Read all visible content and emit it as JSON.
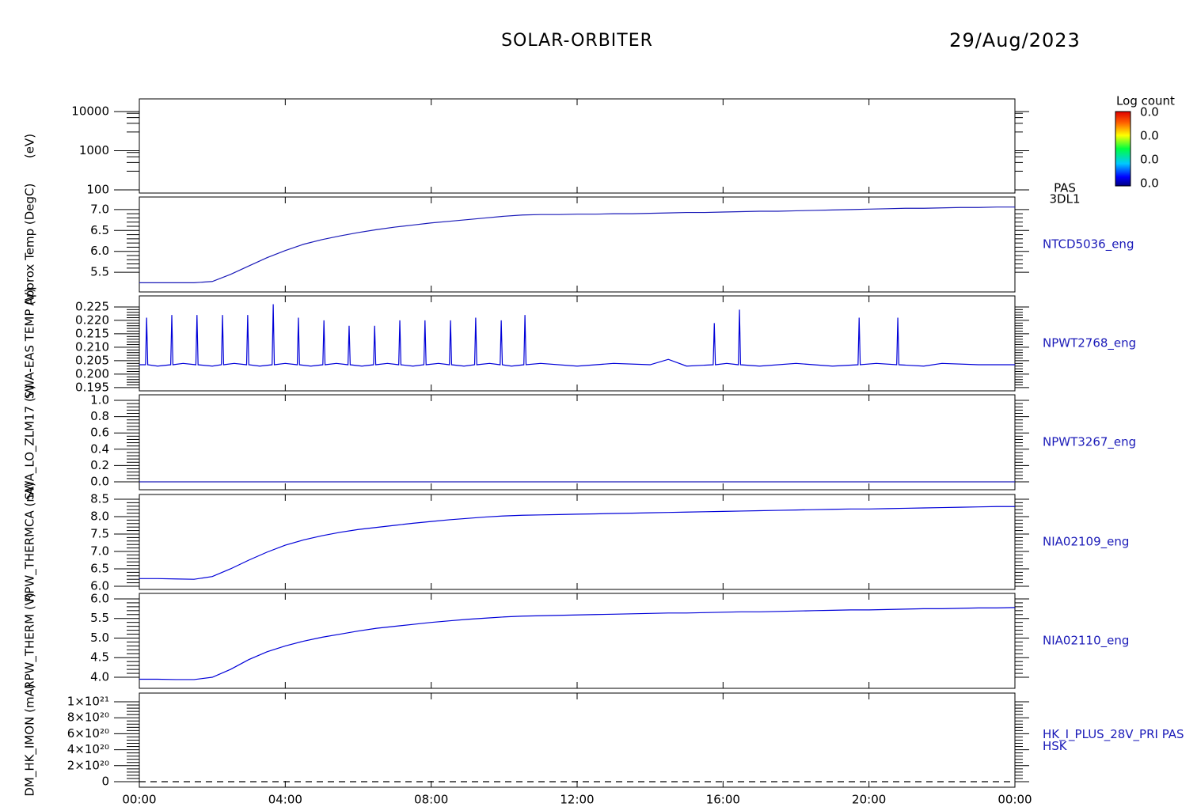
{
  "header": {
    "title": "SOLAR-ORBITER",
    "date": "29/Aug/2023"
  },
  "chart_data": [
    {
      "type": "spectrogram",
      "ylabel": "(eV)",
      "log": true,
      "ylim": [
        83,
        21000
      ],
      "yticks": [
        100,
        1000,
        10000
      ],
      "label_lines": [
        "PAS",
        "3DL1"
      ],
      "colorbar": {
        "title": "Log count",
        "labels": [
          "0.0",
          "0.0",
          "0.0",
          "0.0"
        ]
      }
    },
    {
      "type": "line",
      "ylabel": "Approx Temp (DegC)",
      "ylim": [
        5.03,
        7.3
      ],
      "yticks": [
        5.5,
        {
          "value": 6,
          "label": "6.0"
        },
        6.5,
        {
          "value": 7,
          "label": "7.0"
        }
      ],
      "label_lines": [
        "NTCD5036_eng"
      ],
      "x": [
        0,
        0.5,
        1,
        1.5,
        2,
        2.5,
        3,
        3.5,
        4,
        4.5,
        5,
        5.5,
        6,
        6.5,
        7,
        7.5,
        8,
        8.5,
        9,
        9.5,
        10,
        10.5,
        11,
        11.5,
        12,
        12.5,
        13,
        13.5,
        14,
        14.5,
        15,
        15.5,
        16,
        16.5,
        17,
        17.5,
        18,
        18.5,
        19,
        19.5,
        20,
        20.5,
        21,
        21.5,
        22,
        22.5,
        23,
        23.5,
        24
      ],
      "series": [
        {
          "color": "#1a1ab8",
          "values": [
            5.25,
            5.25,
            5.25,
            5.25,
            5.28,
            5.45,
            5.65,
            5.85,
            6.02,
            6.17,
            6.28,
            6.37,
            6.45,
            6.52,
            6.58,
            6.63,
            6.68,
            6.72,
            6.76,
            6.8,
            6.84,
            6.87,
            6.88,
            6.88,
            6.89,
            6.89,
            6.9,
            6.9,
            6.91,
            6.92,
            6.93,
            6.93,
            6.94,
            6.95,
            6.96,
            6.96,
            6.97,
            6.98,
            6.99,
            7.0,
            7.01,
            7.02,
            7.03,
            7.03,
            7.04,
            7.05,
            7.05,
            7.06,
            7.06
          ]
        }
      ]
    },
    {
      "type": "line",
      "ylabel": "SWA-EAS TEMP (V)",
      "ylim": [
        0.1938,
        0.2291
      ],
      "yticks": [
        0.195,
        {
          "value": 0.2,
          "label": "0.200"
        },
        0.205,
        {
          "value": 0.21,
          "label": "0.210"
        },
        0.215,
        {
          "value": 0.22,
          "label": "0.220"
        },
        0.225
      ],
      "label_lines": [
        "NPWT2768_eng"
      ],
      "x": [
        0,
        0.17,
        0.2,
        0.23,
        0.5,
        0.86,
        0.89,
        0.92,
        1.2,
        1.55,
        1.58,
        1.61,
        2,
        2.25,
        2.28,
        2.31,
        2.6,
        2.94,
        2.97,
        3,
        3.3,
        3.64,
        3.67,
        3.7,
        4,
        4.33,
        4.36,
        4.39,
        4.7,
        5.03,
        5.06,
        5.09,
        5.4,
        5.72,
        5.75,
        5.78,
        6.1,
        6.42,
        6.45,
        6.48,
        6.8,
        7.11,
        7.14,
        7.17,
        7.5,
        7.8,
        7.83,
        7.86,
        8.2,
        8.5,
        8.53,
        8.56,
        8.9,
        9.19,
        9.22,
        9.25,
        9.6,
        9.89,
        9.92,
        9.95,
        10.2,
        10.54,
        10.57,
        10.6,
        11,
        12,
        13,
        14,
        14.5,
        15,
        15.73,
        15.76,
        15.79,
        16.1,
        16.42,
        16.45,
        16.48,
        17,
        18,
        19,
        19.7,
        19.73,
        19.76,
        20.2,
        20.76,
        20.79,
        20.82,
        21.5,
        22,
        23,
        24
      ],
      "series": [
        {
          "color": "#0000d8",
          "values": [
            0.2035,
            0.2035,
            0.221,
            0.2035,
            0.203,
            0.2035,
            0.222,
            0.2035,
            0.204,
            0.2035,
            0.222,
            0.2035,
            0.203,
            0.2035,
            0.222,
            0.2035,
            0.204,
            0.2035,
            0.222,
            0.2035,
            0.203,
            0.2035,
            0.226,
            0.2035,
            0.204,
            0.2035,
            0.221,
            0.2035,
            0.203,
            0.2035,
            0.22,
            0.2035,
            0.204,
            0.2035,
            0.218,
            0.2035,
            0.203,
            0.2035,
            0.218,
            0.2035,
            0.204,
            0.2035,
            0.22,
            0.2035,
            0.203,
            0.2035,
            0.22,
            0.2035,
            0.204,
            0.2035,
            0.22,
            0.2035,
            0.203,
            0.2035,
            0.221,
            0.2035,
            0.204,
            0.2035,
            0.22,
            0.2035,
            0.203,
            0.2035,
            0.222,
            0.2035,
            0.204,
            0.203,
            0.204,
            0.2035,
            0.2055,
            0.203,
            0.2035,
            0.219,
            0.2035,
            0.204,
            0.2035,
            0.224,
            0.2035,
            0.203,
            0.204,
            0.203,
            0.2035,
            0.221,
            0.2035,
            0.204,
            0.2035,
            0.221,
            0.2035,
            0.203,
            0.204,
            0.2035,
            0.2035
          ]
        }
      ]
    },
    {
      "type": "line",
      "ylabel": "SWA_LO_ZLM17 (V)",
      "ylim": [
        -0.097,
        1.068
      ],
      "yticks": [
        {
          "value": 0,
          "label": "0.0"
        },
        0.2,
        0.4,
        0.6,
        0.8,
        {
          "value": 1,
          "label": "1.0"
        }
      ],
      "label_lines": [
        "NPWT3267_eng"
      ],
      "x": [
        0,
        24
      ],
      "series": [
        {
          "color": "#1a1ab8",
          "values": [
            0,
            0
          ]
        }
      ]
    },
    {
      "type": "line",
      "ylabel": "RPW_THERMCA (nA)",
      "ylim": [
        5.909,
        8.636
      ],
      "yticks": [
        {
          "value": 6,
          "label": "6.0"
        },
        6.5,
        {
          "value": 7,
          "label": "7.0"
        },
        7.5,
        {
          "value": 8,
          "label": "8.0"
        },
        8.5
      ],
      "label_lines": [
        "NIA02109_eng"
      ],
      "x": [
        0,
        0.5,
        1,
        1.5,
        2,
        2.5,
        3,
        3.5,
        4,
        4.5,
        5,
        5.5,
        6,
        6.5,
        7,
        7.5,
        8,
        8.5,
        9,
        9.5,
        10,
        10.5,
        11,
        11.5,
        12,
        12.5,
        13,
        13.5,
        14,
        14.5,
        15,
        15.5,
        16,
        16.5,
        17,
        17.5,
        18,
        18.5,
        19,
        19.5,
        20,
        20.5,
        21,
        21.5,
        22,
        22.5,
        23,
        23.5,
        24
      ],
      "series": [
        {
          "color": "#0000d8",
          "values": [
            6.22,
            6.22,
            6.21,
            6.2,
            6.28,
            6.5,
            6.75,
            6.98,
            7.18,
            7.33,
            7.45,
            7.55,
            7.63,
            7.69,
            7.75,
            7.81,
            7.86,
            7.91,
            7.95,
            7.99,
            8.02,
            8.04,
            8.05,
            8.06,
            8.07,
            8.08,
            8.09,
            8.1,
            8.11,
            8.12,
            8.13,
            8.14,
            8.15,
            8.16,
            8.17,
            8.18,
            8.19,
            8.2,
            8.21,
            8.22,
            8.22,
            8.23,
            8.24,
            8.25,
            8.26,
            8.27,
            8.28,
            8.29,
            8.29
          ]
        }
      ]
    },
    {
      "type": "line",
      "ylabel": "RPW_THERM (V)",
      "ylim": [
        3.717,
        6.141
      ],
      "yticks": [
        {
          "value": 4,
          "label": "4.0"
        },
        4.5,
        {
          "value": 5,
          "label": "5.0"
        },
        5.5,
        {
          "value": 6,
          "label": "6.0"
        }
      ],
      "label_lines": [
        "NIA02110_eng"
      ],
      "x": [
        0,
        0.5,
        1,
        1.5,
        2,
        2.5,
        3,
        3.5,
        4,
        4.5,
        5,
        5.5,
        6,
        6.5,
        7,
        7.5,
        8,
        8.5,
        9,
        9.5,
        10,
        10.5,
        11,
        11.5,
        12,
        12.5,
        13,
        13.5,
        14,
        14.5,
        15,
        15.5,
        16,
        16.5,
        17,
        17.5,
        18,
        18.5,
        19,
        19.5,
        20,
        20.5,
        21,
        21.5,
        22,
        22.5,
        23,
        23.5,
        24
      ],
      "series": [
        {
          "color": "#0000d8",
          "values": [
            3.95,
            3.95,
            3.94,
            3.94,
            4.0,
            4.2,
            4.45,
            4.65,
            4.8,
            4.92,
            5.02,
            5.1,
            5.18,
            5.25,
            5.3,
            5.35,
            5.4,
            5.44,
            5.48,
            5.51,
            5.54,
            5.56,
            5.57,
            5.58,
            5.59,
            5.6,
            5.61,
            5.62,
            5.63,
            5.64,
            5.64,
            5.65,
            5.66,
            5.67,
            5.67,
            5.68,
            5.69,
            5.7,
            5.71,
            5.72,
            5.72,
            5.73,
            5.74,
            5.75,
            5.75,
            5.76,
            5.77,
            5.77,
            5.78
          ]
        }
      ]
    },
    {
      "type": "line",
      "ylabel": "DM_HK_IMON (mA)",
      "ylim": [
        -6.93e+19,
        1.109e+21
      ],
      "yticks": [
        0,
        {
          "value": 2e+20,
          "label": "2×10²⁰"
        },
        {
          "value": 4e+20,
          "label": "4×10²⁰"
        },
        {
          "value": 6e+20,
          "label": "6×10²⁰"
        },
        {
          "value": 8e+20,
          "label": "8×10²⁰"
        },
        {
          "value": 1e+21,
          "label": "1×10²¹"
        }
      ],
      "label_lines": [
        "HK_I_PLUS_28V_PRI PAS",
        "HSK"
      ],
      "x": [
        0,
        24
      ],
      "series": [
        {
          "color": "#000000",
          "linestyle": "dashed",
          "values": [
            0,
            0
          ]
        }
      ],
      "xlim": [
        0,
        24
      ],
      "xticks": [
        {
          "value": 0,
          "label": "00:00"
        },
        {
          "value": 4,
          "label": "04:00"
        },
        {
          "value": 8,
          "label": "08:00"
        },
        {
          "value": 12,
          "label": "12:00"
        },
        {
          "value": 16,
          "label": "16:00"
        },
        {
          "value": 20,
          "label": "20:00"
        },
        {
          "value": 24,
          "label": "00:00"
        }
      ]
    }
  ]
}
